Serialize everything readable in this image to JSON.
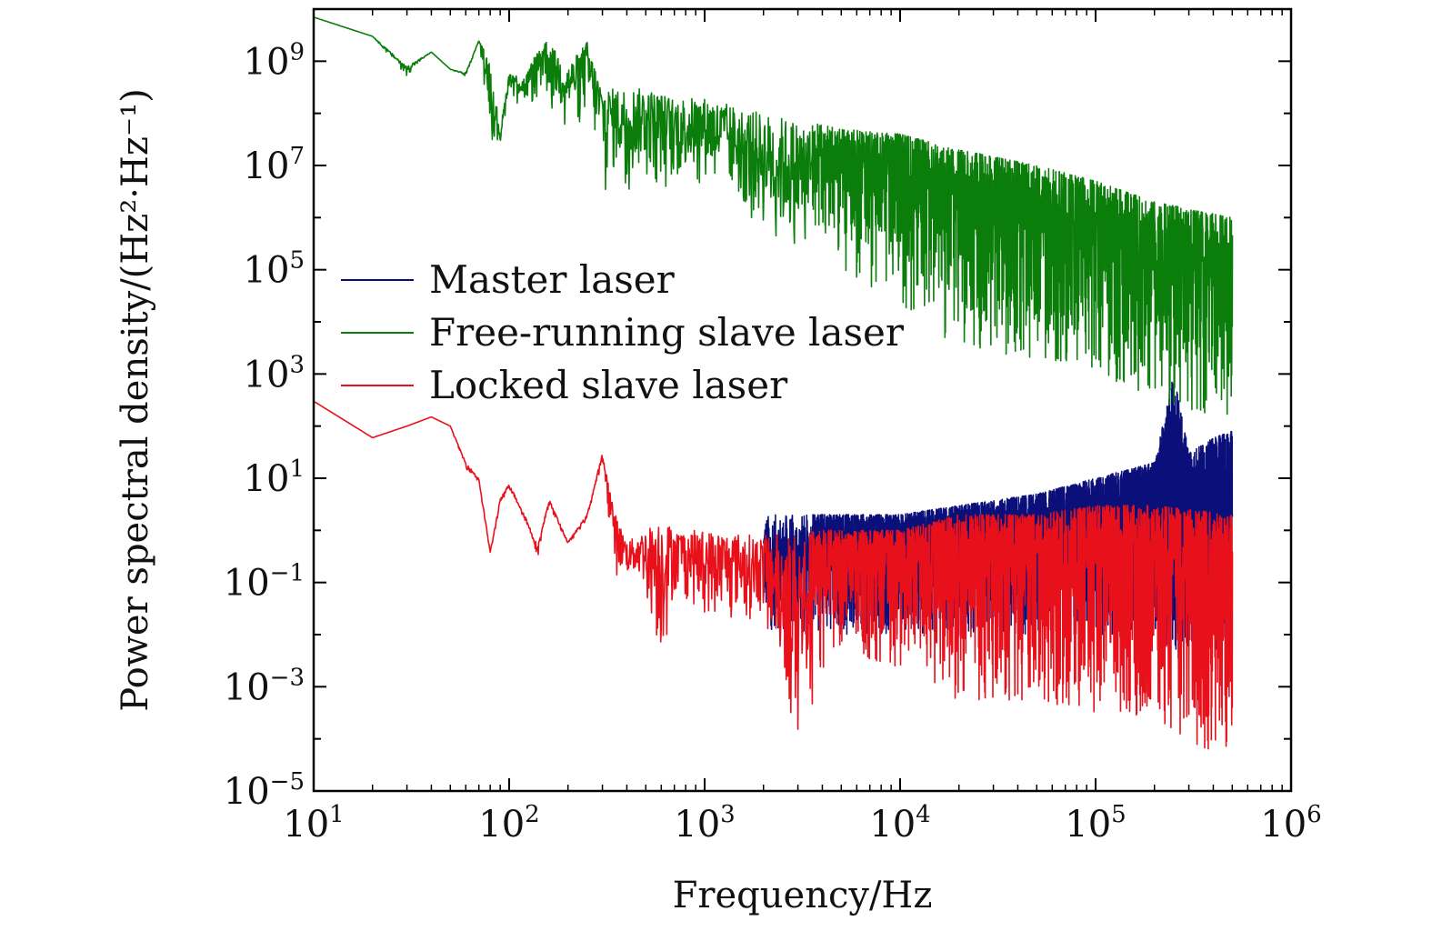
{
  "chart_data": {
    "type": "line",
    "title": "",
    "xlabel": "Frequency/Hz",
    "ylabel": "Power spectral density/(Hz²·Hz⁻¹)",
    "x_scale": "log",
    "y_scale": "log",
    "xlim": [
      10,
      1000000
    ],
    "ylim": [
      1e-05,
      10000000000
    ],
    "x_ticks": [
      {
        "base": "10",
        "exp": "1"
      },
      {
        "base": "10",
        "exp": "2"
      },
      {
        "base": "10",
        "exp": "3"
      },
      {
        "base": "10",
        "exp": "4"
      },
      {
        "base": "10",
        "exp": "5"
      },
      {
        "base": "10",
        "exp": "6"
      }
    ],
    "y_ticks": [
      {
        "base": "10",
        "exp": "−5"
      },
      {
        "base": "10",
        "exp": "−3"
      },
      {
        "base": "10",
        "exp": "−1"
      },
      {
        "base": "10",
        "exp": "1"
      },
      {
        "base": "10",
        "exp": "3"
      },
      {
        "base": "10",
        "exp": "5"
      },
      {
        "base": "10",
        "exp": "7"
      },
      {
        "base": "10",
        "exp": "9"
      }
    ],
    "grid": false,
    "legend_position": "middle-left",
    "series": [
      {
        "name": "Master laser",
        "color": "#0b0f7a",
        "x": [
          2000,
          5000,
          10000,
          20000,
          50000,
          100000,
          200000,
          250000,
          300000,
          400000,
          500000
        ],
        "y_upper": [
          2,
          2,
          2,
          3,
          5,
          10,
          20,
          1000,
          30,
          60,
          80
        ],
        "y_lower": [
          0.01,
          0.01,
          0.01,
          0.01,
          0.01,
          0.01,
          0.01,
          0.003,
          0.005,
          0.005,
          0.001
        ]
      },
      {
        "name": "Free-running slave laser",
        "color": "#0a7d0a",
        "x": [
          10,
          20,
          30,
          40,
          50,
          60,
          70,
          80,
          90,
          100,
          120,
          150,
          200,
          250,
          300,
          400,
          500,
          700,
          1000,
          2000,
          5000,
          10000,
          20000,
          50000,
          100000,
          200000,
          500000
        ],
        "y_upper": [
          7000000000,
          3000000000,
          800000000,
          1500000000,
          700000000,
          600000000,
          2500000000,
          1000000000,
          50000000,
          600000000,
          500000000,
          3000000000,
          800000000,
          2500000000,
          300000000,
          300000000,
          300000000,
          200000000,
          200000000,
          100000000,
          50000000,
          40000000,
          20000000,
          10000000,
          5000000,
          2000000,
          1000000
        ],
        "y_lower": [
          7000000000,
          3000000000,
          500000000,
          1500000000,
          700000000,
          500000000,
          2500000000,
          30000000,
          15000000,
          300000000,
          80000000,
          100000000,
          30000000,
          30000000,
          3000000,
          3000000,
          5000000,
          3000000,
          5000000,
          500000,
          100000,
          20000,
          3000,
          2000,
          1000,
          300,
          100
        ]
      },
      {
        "name": "Locked slave laser",
        "color": "#e8101a",
        "x": [
          10,
          20,
          30,
          40,
          50,
          60,
          70,
          80,
          90,
          100,
          120,
          140,
          160,
          200,
          250,
          300,
          350,
          400,
          500,
          600,
          700,
          1000,
          2000,
          3000,
          5000,
          10000,
          20000,
          50000,
          100000,
          200000,
          500000
        ],
        "y_upper": [
          300,
          60,
          100,
          150,
          100,
          20,
          10,
          0.4,
          4,
          8,
          2,
          0.5,
          4,
          0.6,
          2,
          30,
          2,
          0.6,
          1,
          2,
          1,
          1,
          0.8,
          1,
          1,
          1,
          2,
          2,
          3,
          3,
          2
        ],
        "y_lower": [
          300,
          60,
          100,
          150,
          100,
          15,
          8,
          0.3,
          3,
          6,
          1.5,
          0.3,
          3,
          0.5,
          1.5,
          20,
          0.1,
          0.1,
          0.05,
          0.001,
          0.05,
          0.02,
          0.02,
          0.0001,
          0.005,
          0.002,
          0.0005,
          0.0005,
          0.0003,
          0.0002,
          2e-05
        ]
      }
    ]
  }
}
